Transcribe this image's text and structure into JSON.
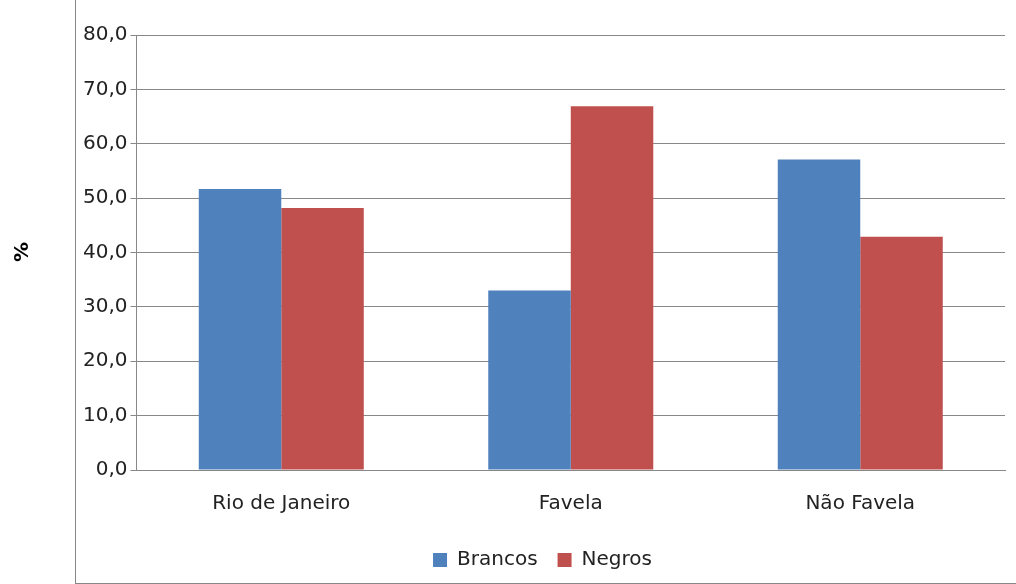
{
  "chart_data": {
    "type": "bar",
    "ylabel": "%",
    "categories": [
      "Rio de Janeiro",
      "Favela",
      "Não Favela"
    ],
    "series": [
      {
        "name": "Brancos",
        "color": "#4f81bd",
        "values": [
          51.7,
          33.0,
          57.1
        ]
      },
      {
        "name": "Negros",
        "color": "#c0504d",
        "values": [
          48.2,
          66.9,
          42.9
        ]
      }
    ],
    "ylim": [
      0,
      80
    ],
    "yticks": [
      {
        "value": 0,
        "label": "0,0"
      },
      {
        "value": 10,
        "label": "10,0"
      },
      {
        "value": 20,
        "label": "20,0"
      },
      {
        "value": 30,
        "label": "30,0"
      },
      {
        "value": 40,
        "label": "40,0"
      },
      {
        "value": 50,
        "label": "50,0"
      },
      {
        "value": 60,
        "label": "60,0"
      },
      {
        "value": 70,
        "label": "70,0"
      },
      {
        "value": 80,
        "label": "80,0"
      }
    ],
    "grid": "y",
    "legend": "bottom"
  }
}
